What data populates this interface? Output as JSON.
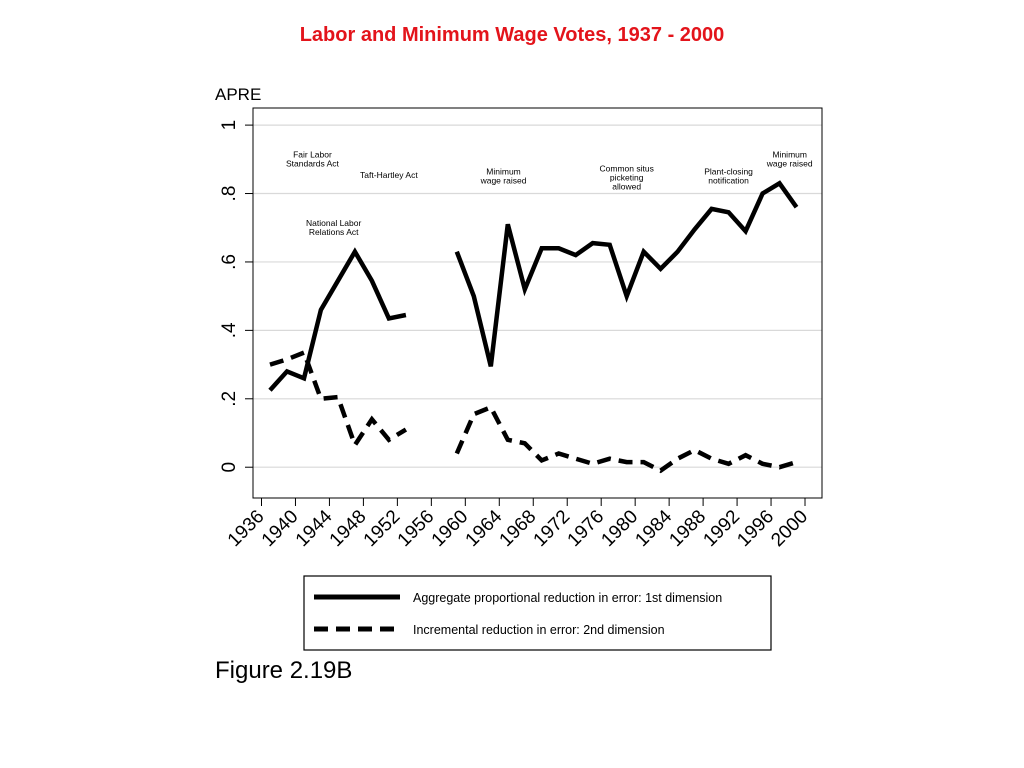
{
  "slide": {
    "title": "Labor and Minimum Wage Votes, 1937 - 2000",
    "title_color": "#e3141b",
    "caption": "Figure 2.19B"
  },
  "chart_data": {
    "type": "line",
    "ylabel": "APRE",
    "xlabel": "",
    "xlim": [
      1935,
      2002
    ],
    "ylim": [
      -0.09,
      1.05
    ],
    "x_ticks": [
      "1936",
      "1940",
      "1944",
      "1948",
      "1952",
      "1956",
      "1960",
      "1964",
      "1968",
      "1972",
      "1976",
      "1980",
      "1984",
      "1988",
      "1992",
      "1996",
      "2000"
    ],
    "y_ticks": [
      0,
      0.2,
      0.4,
      0.6,
      0.8,
      1
    ],
    "y_tick_labels": [
      "0",
      ".2",
      ".4",
      ".6",
      ".8",
      "1"
    ],
    "grid": true,
    "series": [
      {
        "name": "Aggregate proportional reduction in error: 1st dimension",
        "style": "solid",
        "color": "#000000",
        "segments": [
          [
            [
              1937,
              0.225
            ],
            [
              1939,
              0.28
            ],
            [
              1941,
              0.26
            ],
            [
              1943,
              0.46
            ],
            [
              1945,
              0.545
            ],
            [
              1947,
              0.63
            ],
            [
              1949,
              0.545
            ],
            [
              1951,
              0.435
            ],
            [
              1953,
              0.445
            ]
          ],
          [
            [
              1959,
              0.63
            ],
            [
              1961,
              0.5
            ],
            [
              1963,
              0.295
            ],
            [
              1965,
              0.71
            ],
            [
              1967,
              0.52
            ],
            [
              1969,
              0.64
            ],
            [
              1971,
              0.64
            ],
            [
              1973,
              0.62
            ],
            [
              1975,
              0.655
            ],
            [
              1977,
              0.65
            ],
            [
              1979,
              0.5
            ],
            [
              1981,
              0.63
            ],
            [
              1983,
              0.58
            ],
            [
              1985,
              0.63
            ],
            [
              1987,
              0.695
            ],
            [
              1989,
              0.755
            ],
            [
              1991,
              0.745
            ],
            [
              1993,
              0.69
            ],
            [
              1995,
              0.8
            ],
            [
              1997,
              0.83
            ],
            [
              1999,
              0.76
            ]
          ]
        ]
      },
      {
        "name": "Incremental reduction in error: 2nd dimension",
        "style": "dashed",
        "color": "#000000",
        "segments": [
          [
            [
              1937,
              0.3
            ],
            [
              1939,
              0.315
            ],
            [
              1941,
              0.335
            ],
            [
              1943,
              0.2
            ],
            [
              1945,
              0.205
            ],
            [
              1947,
              0.065
            ],
            [
              1949,
              0.14
            ],
            [
              1951,
              0.08
            ],
            [
              1953,
              0.11
            ]
          ],
          [
            [
              1959,
              0.04
            ],
            [
              1961,
              0.155
            ],
            [
              1963,
              0.175
            ],
            [
              1965,
              0.08
            ],
            [
              1967,
              0.07
            ],
            [
              1969,
              0.02
            ],
            [
              1971,
              0.04
            ],
            [
              1973,
              0.025
            ],
            [
              1975,
              0.01
            ],
            [
              1977,
              0.025
            ],
            [
              1979,
              0.015
            ],
            [
              1981,
              0.015
            ],
            [
              1983,
              -0.01
            ],
            [
              1985,
              0.025
            ],
            [
              1987,
              0.05
            ],
            [
              1989,
              0.025
            ],
            [
              1991,
              0.01
            ],
            [
              1993,
              0.035
            ],
            [
              1995,
              0.01
            ],
            [
              1997,
              0.0
            ],
            [
              1999,
              0.015
            ]
          ]
        ]
      }
    ],
    "annotations": [
      {
        "lines": [
          "Fair Labor",
          "Standards Act"
        ],
        "x": 1942,
        "y": 0.905
      },
      {
        "lines": [
          "National Labor",
          "Relations Act"
        ],
        "x": 1944.5,
        "y": 0.705
      },
      {
        "lines": [
          "Taft-Hartley Act"
        ],
        "x": 1951,
        "y": 0.845
      },
      {
        "lines": [
          "Minimum",
          "wage raised"
        ],
        "x": 1964.5,
        "y": 0.855
      },
      {
        "lines": [
          "Common situs",
          "picketing",
          "allowed"
        ],
        "x": 1979,
        "y": 0.865
      },
      {
        "lines": [
          "Plant-closing",
          "notification"
        ],
        "x": 1991,
        "y": 0.855
      },
      {
        "lines": [
          "Minimum",
          "wage raised"
        ],
        "x": 1998.2,
        "y": 0.905
      }
    ],
    "legend": {
      "placement": "bottom",
      "entries": [
        {
          "label": "Aggregate proportional reduction in error: 1st dimension",
          "style": "solid"
        },
        {
          "label": "Incremental reduction in error: 2nd dimension",
          "style": "dashed"
        }
      ]
    }
  }
}
